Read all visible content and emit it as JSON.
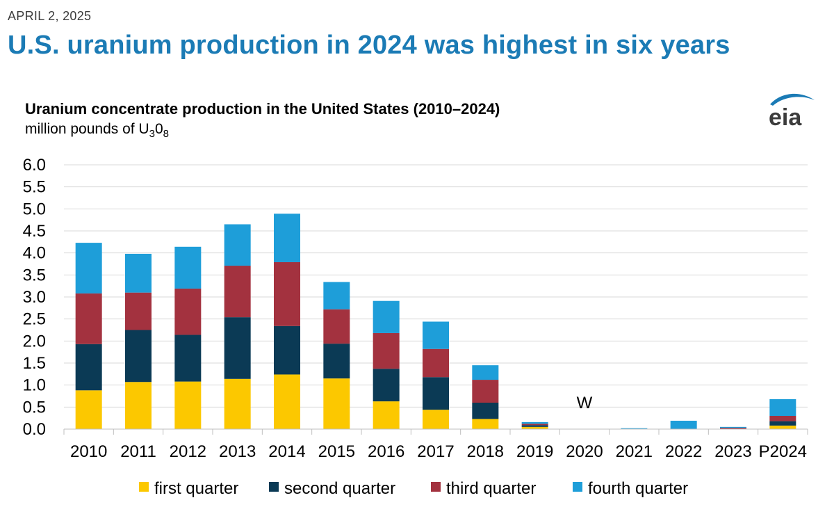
{
  "header": {
    "date": "APRIL 2, 2025",
    "headline": "U.S. uranium production in 2024 was highest in six years"
  },
  "logo": {
    "text": "eia",
    "icon": "eia-logo-icon"
  },
  "colors": {
    "headline": "#1b7bb5",
    "first_quarter": "#fcc800",
    "second_quarter": "#0b3a55",
    "third_quarter": "#a3323f",
    "fourth_quarter": "#1e9ed9",
    "grid": "#d9d9d9"
  },
  "chart_data": {
    "type": "bar",
    "stacked": true,
    "title": "Uranium concentrate production in the United States (2010–2024)",
    "ylabel_main": "million pounds of U",
    "ylabel_sub1": "3",
    "ylabel_mid": "0",
    "ylabel_sub2": "8",
    "xlabel": "",
    "ylim": [
      0,
      6
    ],
    "ytick_step": 0.5,
    "grid": true,
    "legend_position": "bottom",
    "categories": [
      "2010",
      "2011",
      "2012",
      "2013",
      "2014",
      "2015",
      "2016",
      "2017",
      "2018",
      "2019",
      "2020",
      "2021",
      "2022",
      "2023",
      "P2024"
    ],
    "series": [
      {
        "name": "first quarter",
        "key": "first_quarter",
        "values": [
          0.88,
          1.07,
          1.08,
          1.14,
          1.24,
          1.15,
          0.63,
          0.44,
          0.23,
          0.05,
          0.0,
          0.0,
          0.0,
          0.0,
          0.08
        ]
      },
      {
        "name": "second quarter",
        "key": "second_quarter",
        "values": [
          1.05,
          1.18,
          1.06,
          1.4,
          1.1,
          0.79,
          0.74,
          0.74,
          0.37,
          0.04,
          0.0,
          0.0,
          0.0,
          0.0,
          0.1
        ]
      },
      {
        "name": "third quarter",
        "key": "third_quarter",
        "values": [
          1.15,
          0.85,
          1.05,
          1.17,
          1.45,
          0.78,
          0.81,
          0.64,
          0.52,
          0.03,
          0.0,
          0.0,
          0.0,
          0.03,
          0.12
        ]
      },
      {
        "name": "fourth quarter",
        "key": "fourth_quarter",
        "values": [
          1.15,
          0.88,
          0.95,
          0.94,
          1.1,
          0.62,
          0.73,
          0.62,
          0.33,
          0.04,
          0.0,
          0.02,
          0.19,
          0.02,
          0.38
        ]
      }
    ],
    "annotations": [
      {
        "category": "2020",
        "text": "W"
      }
    ]
  }
}
